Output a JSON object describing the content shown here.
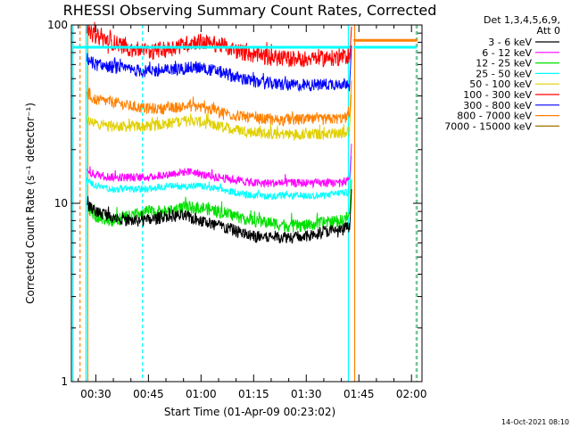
{
  "chart_data": {
    "type": "line",
    "title": "RHESSI Observing Summary Count Rates, Corrected",
    "xlabel": "Start Time (01-Apr-09 00:23:02)",
    "ylabel": "Corrected Count Rate (s⁻¹ detector⁻¹)",
    "yscale": "log",
    "ylim": [
      1,
      100
    ],
    "xlim_minutes": [
      23.03,
      123.0
    ],
    "x_ticks": [
      {
        "minute": 30,
        "label": "00:30"
      },
      {
        "minute": 45,
        "label": "00:45"
      },
      {
        "minute": 60,
        "label": "01:00"
      },
      {
        "minute": 75,
        "label": "01:15"
      },
      {
        "minute": 90,
        "label": "01:30"
      },
      {
        "minute": 105,
        "label": "01:45"
      },
      {
        "minute": 120,
        "label": "02:00"
      }
    ],
    "y_ticks": [
      {
        "value": 1,
        "label": "1"
      },
      {
        "value": 10,
        "label": "10"
      },
      {
        "value": 100,
        "label": "100"
      }
    ],
    "legend_header": [
      "Det 1,3,4,5,6,9,",
      "Att 0"
    ],
    "legend_position": "right",
    "x_anchor_minutes": [
      27.5,
      30,
      35,
      40,
      45,
      50,
      55,
      58,
      60,
      65,
      70,
      75,
      80,
      85,
      90,
      95,
      100,
      102.5
    ],
    "series": [
      {
        "name": "3 - 6 keV",
        "color": "#000000",
        "noise": 0.9,
        "values": [
          10,
          9.0,
          8.5,
          8.0,
          8.0,
          8.5,
          8.5,
          8.2,
          8.0,
          7.5,
          7.0,
          6.5,
          6.5,
          6.5,
          6.5,
          7.0,
          7.0,
          7.5
        ]
      },
      {
        "name": "6 - 12 keV",
        "color": "#ff00ff",
        "noise": 0.6,
        "values": [
          15,
          14.5,
          14.0,
          14.0,
          14.0,
          14.5,
          15.0,
          15.0,
          14.5,
          14.0,
          13.5,
          13.0,
          13.0,
          13.0,
          13.0,
          13.0,
          13.0,
          13.5
        ]
      },
      {
        "name": "12 - 25 keV",
        "color": "#00e000",
        "noise": 0.9,
        "values": [
          9.5,
          8.5,
          8.0,
          8.5,
          9.0,
          9.0,
          9.5,
          9.5,
          9.5,
          9.0,
          8.5,
          8.0,
          7.8,
          7.5,
          7.5,
          7.8,
          8.0,
          8.5
        ]
      },
      {
        "name": "25 - 50 keV",
        "color": "#00ffff",
        "noise": 0.5,
        "values": [
          13.5,
          12.5,
          12.0,
          12.0,
          12.0,
          12.5,
          12.5,
          12.5,
          12.5,
          12.0,
          11.5,
          11.0,
          11.0,
          11.0,
          11.0,
          11.0,
          11.5,
          11.5
        ]
      },
      {
        "name": "50 - 100 keV",
        "color": "#e0d000",
        "noise": 0.8,
        "values": [
          29,
          28,
          27,
          27,
          27,
          28,
          29,
          29,
          28.5,
          27,
          26,
          25,
          24.5,
          24.5,
          24.5,
          24.5,
          25,
          25.5
        ]
      },
      {
        "name": "100 - 300 keV",
        "color": "#ff0000",
        "noise": 1.2,
        "values": [
          92,
          87,
          80,
          74,
          71,
          73,
          78,
          81,
          81,
          78,
          72,
          68,
          66,
          65,
          65,
          65,
          66,
          68
        ]
      },
      {
        "name": "300 - 800 keV",
        "color": "#0000ff",
        "noise": 0.9,
        "values": [
          65,
          60,
          58,
          56,
          55,
          56,
          57,
          58,
          57.5,
          55,
          51,
          48,
          47,
          46,
          46,
          46.5,
          47,
          48
        ]
      },
      {
        "name": "800 - 7000 keV",
        "color": "#ff8000",
        "noise": 0.8,
        "values": [
          40,
          38,
          37,
          35,
          34,
          34,
          35,
          35,
          34.5,
          33,
          31,
          30,
          29.5,
          29.5,
          29.5,
          29.5,
          30,
          30.5
        ]
      },
      {
        "name": "7000 - 15000 keV",
        "color": "#a07000",
        "noise": 0.0,
        "values": []
      }
    ],
    "plateau_lines": [
      {
        "color": "#00ffff",
        "value": 75,
        "from_minute": 23.5,
        "to_minute": 27
      },
      {
        "color": "#00ffff",
        "value": 75,
        "from_minute": 27,
        "to_minute": 102.5
      },
      {
        "color": "#00ffff",
        "value": 75,
        "from_minute": 103.5,
        "to_minute": 121.5
      },
      {
        "color": "#ff8000",
        "value": 82,
        "from_minute": 103.5,
        "to_minute": 121.5
      }
    ],
    "vertical_markers": [
      {
        "minute": 23.5,
        "color": "#00ffff",
        "style": "solid"
      },
      {
        "minute": 25.5,
        "color": "#ff8000",
        "style": "dashed"
      },
      {
        "minute": 27.2,
        "color": "#00ffff",
        "style": "solid"
      },
      {
        "minute": 27.7,
        "color": "#ff8000",
        "style": "solid"
      },
      {
        "minute": 43.3,
        "color": "#00ffff",
        "style": "dashed"
      },
      {
        "minute": 102.0,
        "color": "#00ffff",
        "style": "solid"
      },
      {
        "minute": 103.8,
        "color": "#ff8000",
        "style": "solid"
      },
      {
        "minute": 121.3,
        "color": "#00ffff",
        "style": "dashed"
      },
      {
        "minute": 121.6,
        "color": "#ff8000",
        "style": "dashed"
      }
    ]
  },
  "footer": {
    "date_stamp": "14-Oct-2021 08:10"
  }
}
